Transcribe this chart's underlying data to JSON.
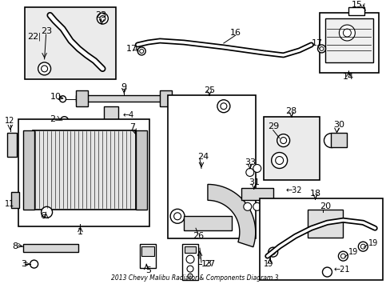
{
  "title": "2013 Chevy Malibu Radiator & Components Diagram 3",
  "bg_color": "#ffffff",
  "line_color": "#000000",
  "box_fill": "#e8e8e8",
  "label_color": "#000000",
  "font_size": 7,
  "label_font_size": 8
}
